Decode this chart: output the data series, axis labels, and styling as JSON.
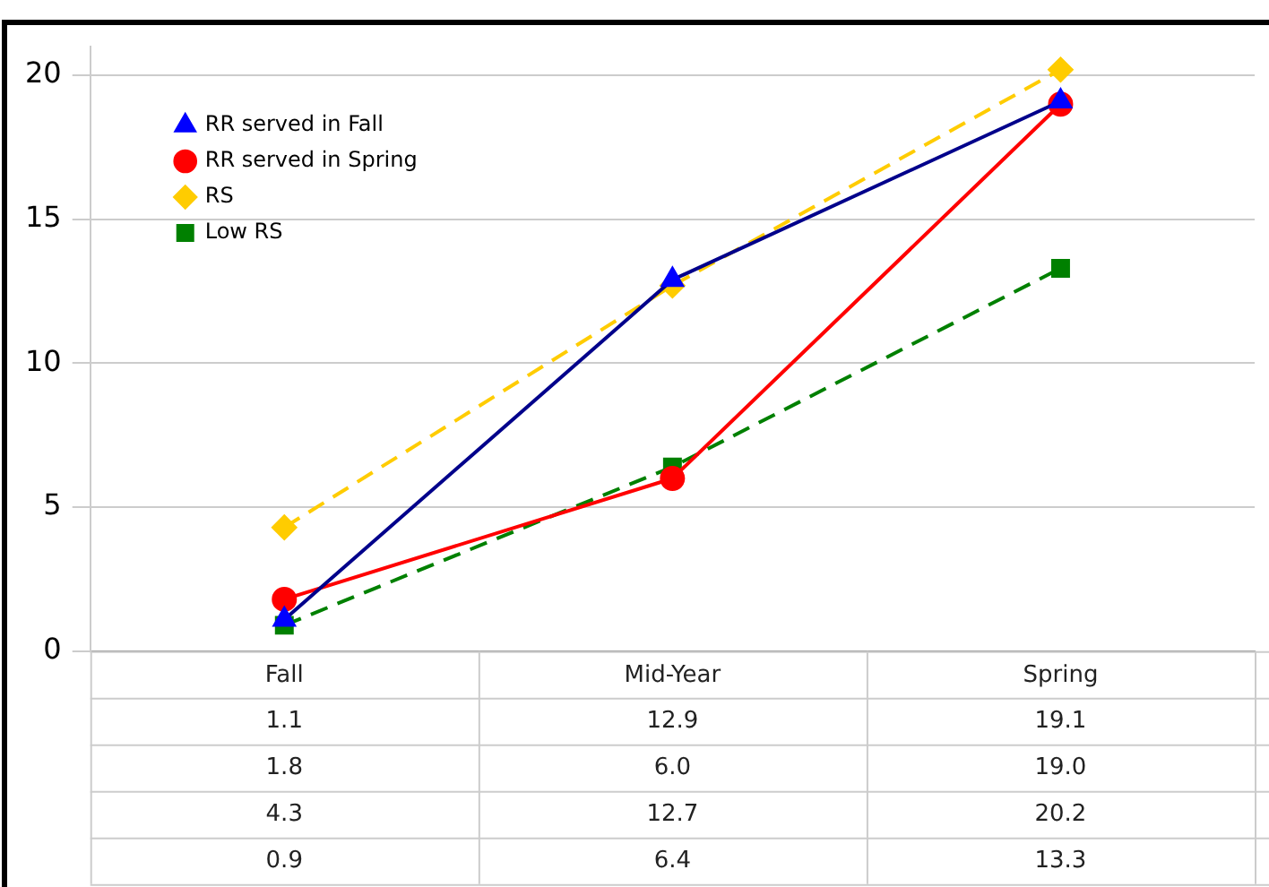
{
  "chart_data": {
    "type": "line",
    "categories": [
      "Fall",
      "Mid-Year",
      "Spring"
    ],
    "series": [
      {
        "name": "RR served in Fall",
        "color": "#00008b",
        "values": [
          1.1,
          12.9,
          19.1
        ],
        "value_labels": [
          "1.1",
          "12.9",
          "19.1"
        ],
        "marker": "triangle",
        "line_style": "solid"
      },
      {
        "name": "RR served in Spring",
        "color": "#ff0000",
        "values": [
          1.8,
          6.0,
          19.0
        ],
        "value_labels": [
          "1.8",
          "6.0",
          "19.0"
        ],
        "marker": "circle",
        "line_style": "solid"
      },
      {
        "name": "RS",
        "color": "#ffcc00",
        "values": [
          4.3,
          12.7,
          20.2
        ],
        "value_labels": [
          "4.3",
          "12.7",
          "20.2"
        ],
        "marker": "diamond",
        "line_style": "dashed"
      },
      {
        "name": "Low RS",
        "color": "#008000",
        "values": [
          0.9,
          6.4,
          13.3
        ],
        "value_labels": [
          "0.9",
          "6.4",
          "13.3"
        ],
        "marker": "square",
        "line_style": "dashed"
      }
    ],
    "ylim": [
      0,
      21
    ],
    "yticks": [
      0,
      5,
      10,
      15,
      20
    ],
    "grid": "y",
    "legend": "top left"
  }
}
